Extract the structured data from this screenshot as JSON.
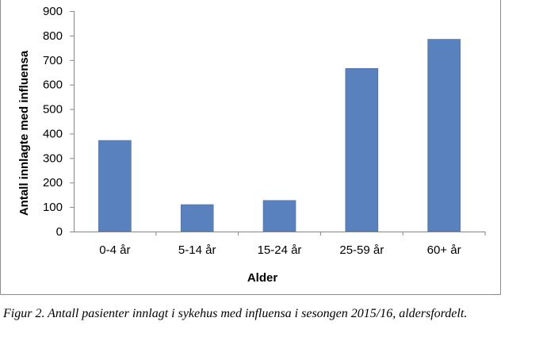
{
  "chart_data": {
    "type": "bar",
    "title": "",
    "xlabel": "Alder",
    "ylabel": "Antall innlagte med influensa",
    "categories": [
      "0-4 år",
      "5-14 år",
      "15-24 år",
      "25-59 år",
      "60+ år"
    ],
    "values": [
      372,
      110,
      127,
      666,
      785
    ],
    "ylim": [
      0,
      900
    ],
    "yticks": [
      "0",
      "100",
      "200",
      "300",
      "400",
      "500",
      "600",
      "700",
      "800",
      "900"
    ],
    "bar_color": "#5981bd",
    "grid": false,
    "legend": "none"
  },
  "caption": "Figur 2. Antall pasienter innlagt i sykehus med influensa i sesongen 2015/16, aldersfordelt."
}
